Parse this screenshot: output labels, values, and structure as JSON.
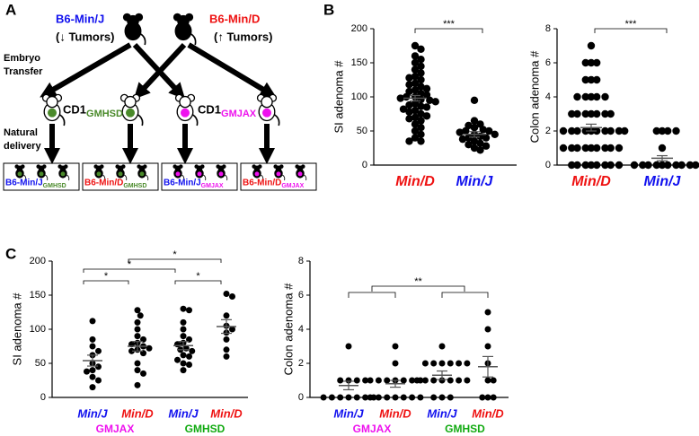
{
  "panel_labels": [
    "A",
    "B",
    "C"
  ],
  "diagram": {
    "donor_left": {
      "line1": "B6-Min/J",
      "line2": "(↓ Tumors)"
    },
    "donor_right": {
      "line1": "B6-Min/D",
      "line2": "(↑ Tumors)"
    },
    "step1": [
      "Embryo",
      "Transfer"
    ],
    "step2": [
      "Natural",
      "delivery"
    ],
    "foster_left": {
      "base": "CD1",
      "sub": "GMHSD"
    },
    "foster_right": {
      "base": "CD1",
      "sub": "GMJAX"
    },
    "offspring": [
      {
        "base": "B6-Min/J",
        "sub": "GMHSD"
      },
      {
        "base": "B6-Min/D",
        "sub": "GMHSD"
      },
      {
        "base": "B6-Min/J",
        "sub": "GMJAX"
      },
      {
        "base": "B6-Min/D",
        "sub": "GMJAX"
      }
    ]
  },
  "chart_data": [
    {
      "type": "strip",
      "ylabel": "SI adenoma #",
      "ylim": [
        0,
        200
      ],
      "yticks": [
        0,
        50,
        100,
        150,
        200
      ],
      "categories": [
        "Min/D",
        "Min/J"
      ],
      "category_colors": [
        "#ee1111",
        "#1111ee"
      ],
      "groups": [
        {
          "values": [
            175,
            170,
            160,
            155,
            150,
            145,
            140,
            135,
            130,
            128,
            125,
            120,
            118,
            115,
            112,
            110,
            108,
            105,
            103,
            100,
            100,
            98,
            96,
            95,
            93,
            90,
            88,
            86,
            85,
            82,
            80,
            78,
            75,
            72,
            70,
            68,
            65,
            60,
            55,
            50,
            45,
            40,
            35,
            35
          ],
          "mean": 98,
          "sem": 4
        },
        {
          "values": [
            95,
            65,
            60,
            58,
            55,
            52,
            50,
            50,
            48,
            45,
            45,
            42,
            40,
            40,
            38,
            35,
            32,
            30,
            28,
            25,
            22
          ],
          "mean": 45,
          "sem": 4
        }
      ],
      "annotations": [
        "***"
      ]
    },
    {
      "type": "strip",
      "ylabel": "Colon adenoma #",
      "ylim": [
        0,
        8
      ],
      "yticks": [
        0,
        2,
        4,
        6,
        8
      ],
      "categories": [
        "Min/D",
        "Min/J"
      ],
      "category_colors": [
        "#ee1111",
        "#1111ee"
      ],
      "groups": [
        {
          "values": [
            0,
            0,
            0,
            0,
            0,
            0,
            0,
            0,
            1,
            1,
            1,
            1,
            1,
            1,
            1,
            1,
            1,
            2,
            2,
            2,
            2,
            2,
            2,
            2,
            2,
            2,
            2,
            3,
            3,
            3,
            3,
            3,
            3,
            3,
            4,
            4,
            4,
            4,
            4,
            5,
            5,
            5,
            6,
            6,
            6,
            7
          ],
          "mean": 2.2,
          "sem": 0.2
        },
        {
          "values": [
            0,
            0,
            0,
            0,
            0,
            0,
            0,
            0,
            0,
            0,
            1,
            2,
            2,
            2,
            2
          ],
          "mean": 0.4,
          "sem": 0.15
        }
      ],
      "annotations": [
        "***"
      ]
    },
    {
      "type": "strip",
      "ylabel": "SI adenoma #",
      "ylim": [
        0,
        200
      ],
      "yticks": [
        0,
        50,
        100,
        150,
        200
      ],
      "categories": [
        "Min/J",
        "Min/D",
        "Min/J",
        "Min/D"
      ],
      "category_colors": [
        "#1111ee",
        "#ee1111",
        "#1111ee",
        "#ee1111"
      ],
      "group_labels": [
        "GMJAX",
        "GMHSD"
      ],
      "group_label_colors": [
        "#ee11ee",
        "#11aa11"
      ],
      "groups": [
        {
          "values": [
            112,
            85,
            75,
            68,
            62,
            50,
            45,
            40,
            38,
            30,
            25,
            15
          ],
          "mean": 54,
          "sem": 8
        },
        {
          "values": [
            128,
            120,
            110,
            100,
            90,
            85,
            80,
            78,
            75,
            72,
            70,
            68,
            65,
            50,
            40,
            35,
            18
          ],
          "mean": 75,
          "sem": 7
        },
        {
          "values": [
            130,
            128,
            110,
            100,
            90,
            85,
            80,
            78,
            72,
            70,
            68,
            62,
            60,
            55,
            50,
            48,
            40
          ],
          "mean": 76,
          "sem": 6
        },
        {
          "values": [
            152,
            148,
            120,
            105,
            100,
            95,
            85,
            70,
            60
          ],
          "mean": 104,
          "sem": 10
        }
      ],
      "annotations": [
        "*",
        "*",
        "*",
        "*"
      ]
    },
    {
      "type": "strip",
      "ylabel": "Colon adenoma #",
      "ylim": [
        0,
        8
      ],
      "yticks": [
        0,
        2,
        4,
        6,
        8
      ],
      "categories": [
        "Min/J",
        "Min/D",
        "Min/J",
        "Min/D"
      ],
      "category_colors": [
        "#1111ee",
        "#ee1111",
        "#1111ee",
        "#ee1111"
      ],
      "group_labels": [
        "GMJAX",
        "GMHSD"
      ],
      "group_label_colors": [
        "#ee11ee",
        "#11aa11"
      ],
      "groups": [
        {
          "values": [
            3,
            1,
            1,
            1,
            1,
            0,
            0,
            0,
            0,
            0,
            0,
            0
          ],
          "mean": 0.7,
          "sem": 0.25
        },
        {
          "values": [
            3,
            2,
            1,
            1,
            1,
            1,
            1,
            1,
            1,
            0,
            0,
            0,
            0,
            0,
            0,
            0
          ],
          "mean": 0.8,
          "sem": 0.2
        },
        {
          "values": [
            3,
            2,
            2,
            2,
            2,
            2,
            2,
            1,
            1,
            1,
            1,
            1,
            1,
            1,
            0,
            0,
            0
          ],
          "mean": 1.3,
          "sem": 0.25
        },
        {
          "values": [
            5,
            4,
            3,
            2,
            1,
            1,
            0,
            0,
            0
          ],
          "mean": 1.8,
          "sem": 0.6
        }
      ],
      "annotations": [
        "**"
      ]
    }
  ]
}
